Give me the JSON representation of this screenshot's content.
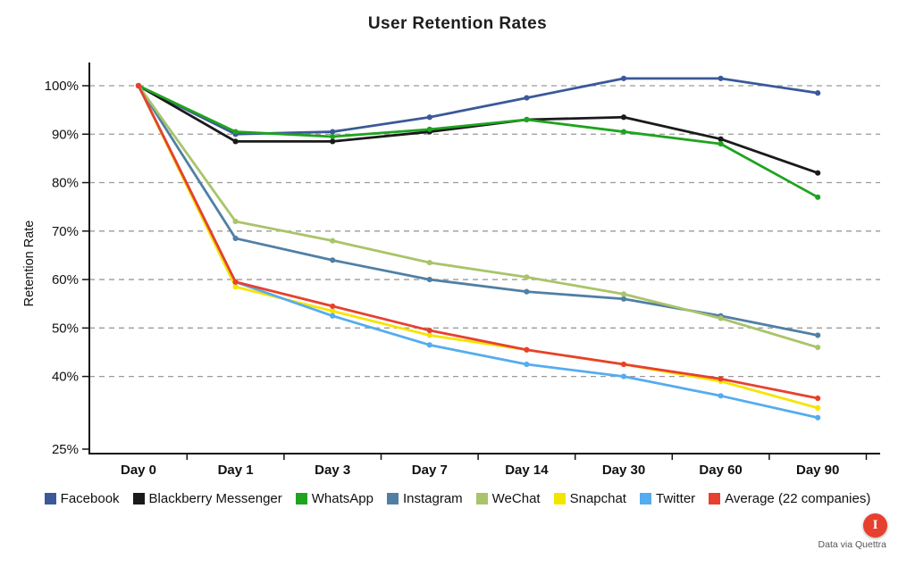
{
  "chart_data": {
    "type": "line",
    "title": "User Retention Rates",
    "xlabel": "",
    "ylabel": "Retention Rate",
    "categories": [
      "Day 0",
      "Day 1",
      "Day 3",
      "Day 7",
      "Day 14",
      "Day 30",
      "Day 60",
      "Day 90"
    ],
    "yticks": [
      100,
      90,
      80,
      70,
      60,
      50,
      40,
      25
    ],
    "ytick_labels": [
      "100%",
      "90%",
      "80%",
      "70%",
      "60%",
      "50%",
      "40%",
      "25%"
    ],
    "ylim": [
      25,
      105
    ],
    "grid": "horizontal dashed",
    "legend_position": "bottom",
    "series": [
      {
        "name": "Facebook",
        "color": "#3b5998",
        "values": [
          100,
          90,
          90.5,
          93.5,
          97.5,
          101.5,
          101.5,
          98.5
        ]
      },
      {
        "name": "Blackberry Messenger",
        "color": "#1a1a1a",
        "values": [
          100,
          88.5,
          88.5,
          90.5,
          93,
          93.5,
          89,
          82
        ]
      },
      {
        "name": "WhatsApp",
        "color": "#1fa41f",
        "values": [
          100,
          90.5,
          89.5,
          91,
          93,
          90.5,
          88,
          77
        ]
      },
      {
        "name": "Instagram",
        "color": "#517fa4",
        "values": [
          100,
          68.5,
          64,
          60,
          57.5,
          56,
          52.5,
          48.5
        ]
      },
      {
        "name": "WeChat",
        "color": "#a9c46a",
        "values": [
          100,
          72,
          68,
          63.5,
          60.5,
          57,
          52,
          46
        ]
      },
      {
        "name": "Snapchat",
        "color": "#f5e400",
        "values": [
          100,
          58.5,
          53.5,
          48.5,
          45.5,
          42.5,
          39,
          33.5
        ]
      },
      {
        "name": "Twitter",
        "color": "#55acee",
        "values": [
          100,
          59.5,
          52.5,
          46.5,
          42.5,
          40,
          36,
          31.5
        ]
      },
      {
        "name": "Average (22 companies)",
        "color": "#e8402f",
        "values": [
          100,
          59.5,
          54.5,
          49.5,
          45.5,
          42.5,
          39.5,
          35.5
        ]
      }
    ]
  },
  "footer": {
    "credit": "Data via Quettra",
    "logo_letter": "I"
  }
}
